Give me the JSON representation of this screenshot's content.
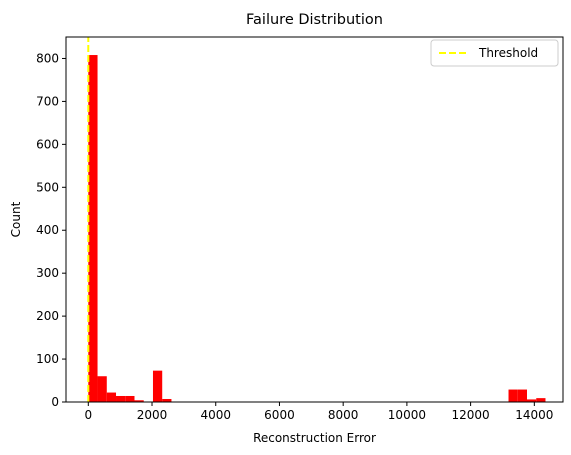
{
  "chart_data": {
    "type": "bar",
    "subtype": "histogram",
    "title": "Failure Distribution",
    "xlabel": "Reconstruction Error",
    "ylabel": "Count",
    "xlim": [
      -700,
      14900
    ],
    "ylim": [
      0,
      850
    ],
    "xticks": [
      0,
      2000,
      4000,
      6000,
      8000,
      10000,
      12000,
      14000
    ],
    "yticks": [
      0,
      100,
      200,
      300,
      400,
      500,
      600,
      700,
      800
    ],
    "grid": false,
    "bar_color": "#ff0000",
    "bins": [
      {
        "x0": 0,
        "x1": 290,
        "count": 808
      },
      {
        "x0": 290,
        "x1": 580,
        "count": 60
      },
      {
        "x0": 580,
        "x1": 870,
        "count": 22
      },
      {
        "x0": 870,
        "x1": 1160,
        "count": 14
      },
      {
        "x0": 1160,
        "x1": 1450,
        "count": 14
      },
      {
        "x0": 1450,
        "x1": 1740,
        "count": 4
      },
      {
        "x0": 1740,
        "x1": 2030,
        "count": 0
      },
      {
        "x0": 2030,
        "x1": 2320,
        "count": 73
      },
      {
        "x0": 2320,
        "x1": 2610,
        "count": 7
      },
      {
        "x0": 13190,
        "x1": 13480,
        "count": 29
      },
      {
        "x0": 13480,
        "x1": 13770,
        "count": 29
      },
      {
        "x0": 13770,
        "x1": 14060,
        "count": 6
      },
      {
        "x0": 14060,
        "x1": 14350,
        "count": 9
      }
    ],
    "threshold": {
      "name": "Threshold",
      "x": 0,
      "color": "#ffff00",
      "style": "dashed"
    },
    "legend": {
      "position": "top-right",
      "entries": [
        "Threshold"
      ]
    }
  }
}
